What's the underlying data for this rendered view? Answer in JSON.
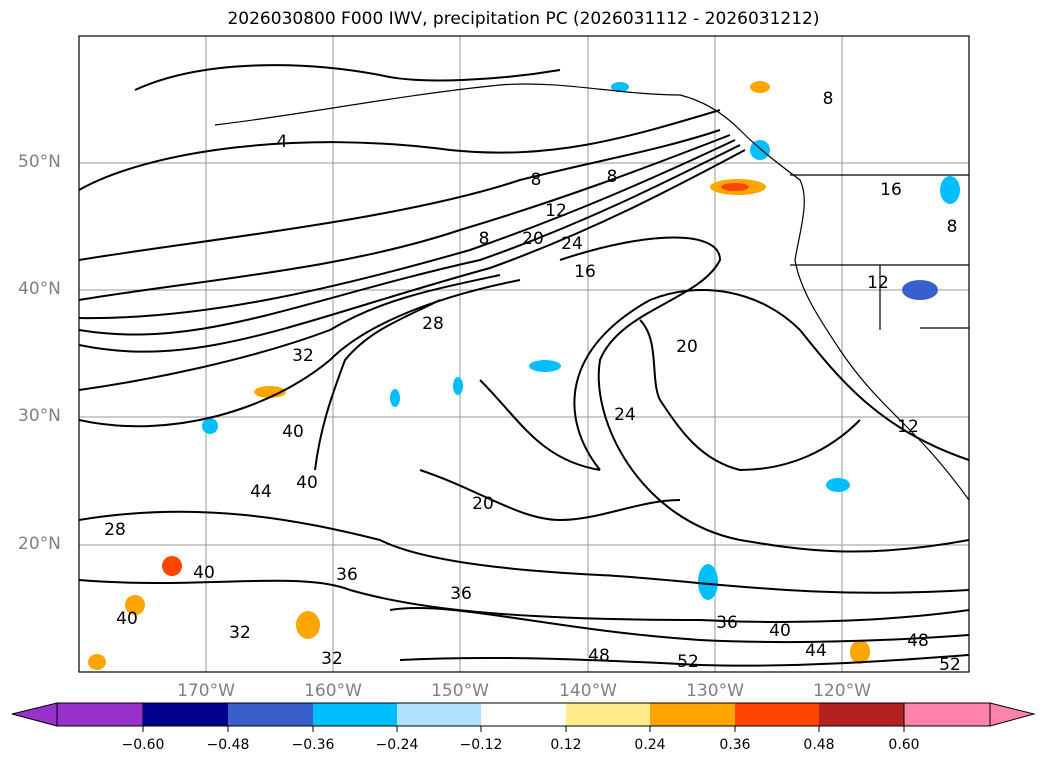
{
  "title": "2026030800 F000 IWV, precipitation PC (2026031112 - 2026031212)",
  "map": {
    "lat_labels": [
      "50°N",
      "40°N",
      "30°N",
      "20°N"
    ],
    "lon_labels": [
      "170°W",
      "160°W",
      "150°W",
      "140°W",
      "130°W",
      "120°W"
    ],
    "contour_labels": [
      "4",
      "8",
      "8",
      "8",
      "12",
      "16",
      "20",
      "24",
      "28",
      "32",
      "40",
      "44",
      "40",
      "28",
      "40",
      "40",
      "32",
      "36",
      "36",
      "32",
      "20",
      "20",
      "24",
      "36",
      "40",
      "44",
      "48",
      "52",
      "48",
      "52",
      "16",
      "12",
      "12",
      "8",
      "8"
    ]
  },
  "colorbar": {
    "ticks": [
      "−0.60",
      "−0.48",
      "−0.36",
      "−0.24",
      "−0.12",
      "0.12",
      "0.24",
      "0.36",
      "0.48",
      "0.60"
    ],
    "colors": [
      "#9932cc",
      "#00008b",
      "#3a5fcd",
      "#00bfff",
      "#b0e2ff",
      "#ffffff",
      "#ffec8b",
      "#ffa500",
      "#ff4500",
      "#b22222",
      "#ff82ab"
    ]
  }
}
